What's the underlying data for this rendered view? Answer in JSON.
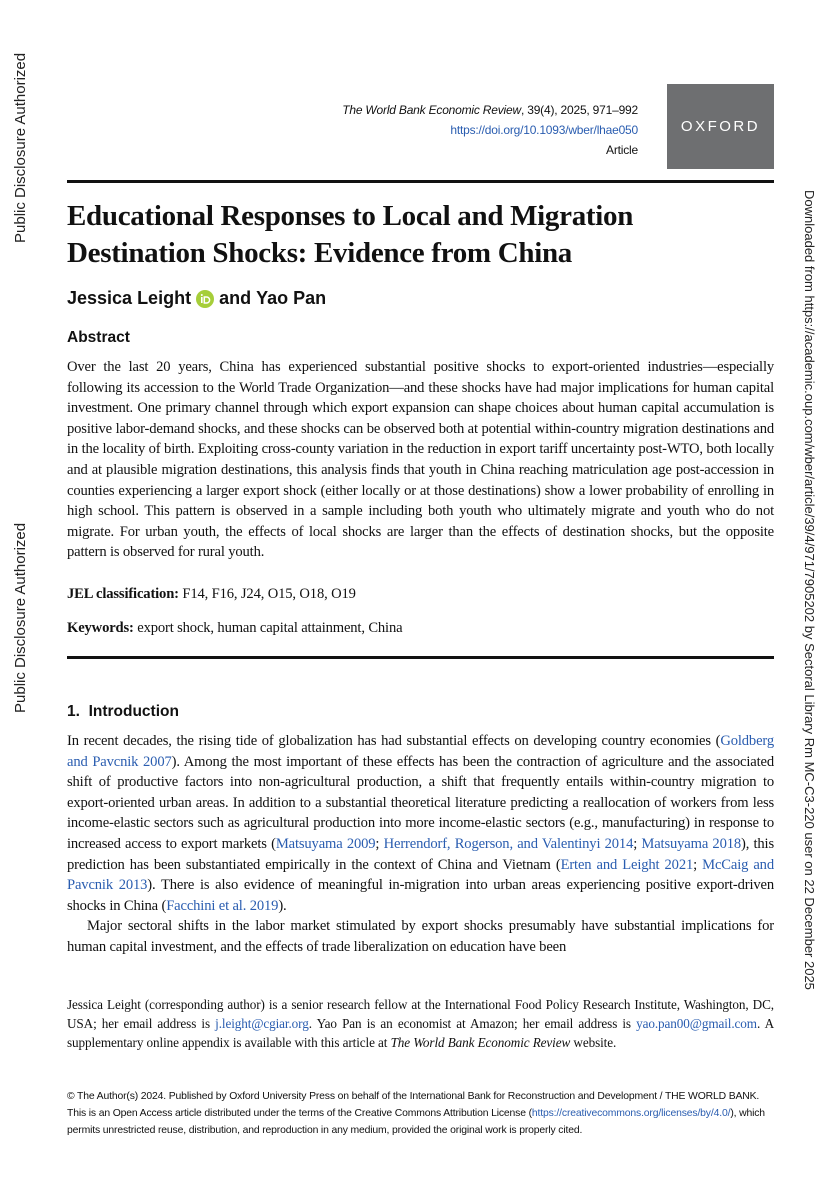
{
  "side_labels": {
    "left_top": "Public Disclosure Authorized",
    "left_bottom": "Public Disclosure Authorized",
    "right": "Downloaded from https://academic.oup.com/wber/article/39/4/971/7905202 by Sectoral Library Rm MC-C3-220 user on 22 December 2025"
  },
  "header": {
    "journal": "The World Bank Economic Review",
    "citation": ", 39(4), 2025, 971–992",
    "doi": "https://doi.org/10.1093/wber/lhae050",
    "article_type": "Article",
    "publisher_logo": "OXFORD"
  },
  "title": "Educational Responses to Local and Migration Destination Shocks: Evidence from China",
  "authors": {
    "first": "Jessica Leight",
    "connector": "and",
    "second": "Yao Pan"
  },
  "abstract": {
    "heading": "Abstract",
    "text": "Over the last 20 years, China has experienced substantial positive shocks to export-oriented industries—especially following its accession to the World Trade Organization—and these shocks have had major implications for human capital investment. One primary channel through which export expansion can shape choices about human capital accumulation is positive labor-demand shocks, and these shocks can be observed both at potential within-country migration destinations and in the locality of birth. Exploiting cross-county variation in the reduction in export tariff uncertainty post-WTO, both locally and at plausible migration destinations, this analysis finds that youth in China reaching matriculation age post-accession in counties experiencing a larger export shock (either locally or at those destinations) show a lower probability of enrolling in high school. This pattern is observed in a sample including both youth who ultimately migrate and youth who do not migrate. For urban youth, the effects of local shocks are larger than the effects of destination shocks, but the opposite pattern is observed for rural youth."
  },
  "jel": {
    "label": "JEL classification:",
    "codes": "F14, F16, J24, O15, O18, O19"
  },
  "keywords": {
    "label": "Keywords:",
    "text": "export shock, human capital attainment, China"
  },
  "introduction": {
    "number": "1.",
    "heading": "Introduction",
    "paragraphs": [
      [
        "In recent decades, the rising tide of globalization has had substantial effects on developing country economies (",
        "Goldberg and Pavcnik 2007",
        "). Among the most important of these effects has been the contraction of agriculture and the associated shift of productive factors into non-agricultural production, a shift that frequently entails within-country migration to export-oriented urban areas. In addition to a substantial theoretical literature predicting a reallocation of workers from less income-elastic sectors such as agricultural production into more income-elastic sectors (e.g., manufacturing) in response to increased access to export markets (",
        "Matsuyama 2009",
        "; ",
        "Herrendorf, Rogerson, and Valentinyi 2014",
        "; ",
        "Matsuyama 2018",
        "), this prediction has been substantiated empirically in the context of China and Vietnam (",
        "Erten and Leight 2021",
        "; ",
        "McCaig and Pavcnik 2013",
        "). There is also evidence of meaningful in-migration into urban areas experiencing positive export-driven shocks in China (",
        "Facchini et al. 2019",
        ")."
      ],
      [
        "Major sectoral shifts in the labor market stimulated by export shocks presumably have substantial implications for human capital investment, and the effects of trade liberalization on education have been"
      ]
    ]
  },
  "footnote": [
    "Jessica Leight (corresponding author) is a senior research fellow at the International Food Policy Research Institute, Washington, DC, USA; her email address is ",
    "j.leight@cgiar.org",
    ". Yao Pan is an economist at Amazon; her email address is ",
    "yao.pan00@gmail.com",
    ". A supplementary online appendix is available with this article at ",
    "The World Bank Economic Review",
    " website."
  ],
  "copyright": [
    "© The Author(s) 2024. Published by Oxford University Press on behalf of the International Bank for Reconstruction and Development / THE WORLD BANK. This is an Open Access article distributed under the terms of the Creative Commons Attribution License (",
    "https://creativecommons.org/licenses/by/4.0/",
    "), which permits unrestricted reuse, distribution, and reproduction in any medium, provided the original work is properly cited."
  ]
}
